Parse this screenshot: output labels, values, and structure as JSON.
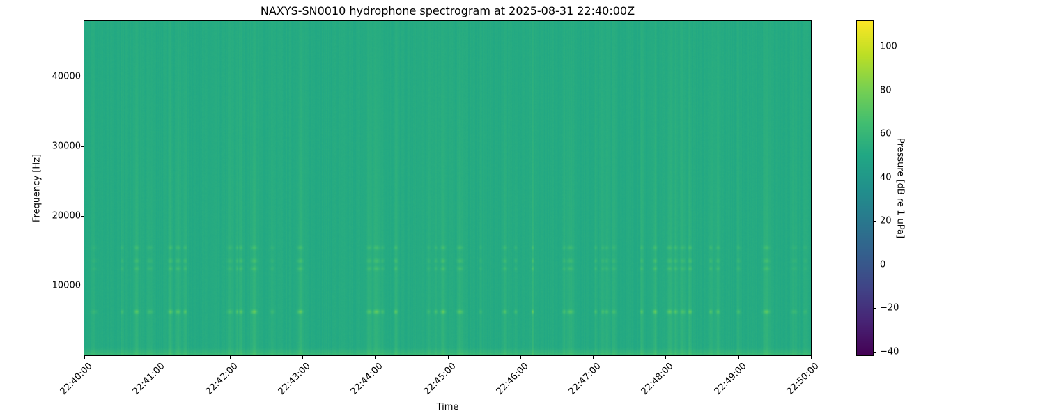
{
  "chart_data": {
    "type": "heatmap",
    "title": "NAXYS-SN0010 hydrophone spectrogram at 2025-08-31 22:40:00Z",
    "xlabel": "Time",
    "ylabel": "Frequency [Hz]",
    "xlim": [
      "22:40:00",
      "22:50:00"
    ],
    "ylim": [
      0,
      48000
    ],
    "x_ticks": [
      "22:40:00",
      "22:41:00",
      "22:42:00",
      "22:43:00",
      "22:44:00",
      "22:45:00",
      "22:46:00",
      "22:47:00",
      "22:48:00",
      "22:49:00",
      "22:50:00"
    ],
    "y_ticks": [
      10000,
      20000,
      30000,
      40000
    ],
    "colormap": "viridis",
    "colorbar": {
      "label": "Pressure [dB re 1 uPa]",
      "range": [
        -41.6,
        111.8
      ],
      "ticks": [
        -40,
        -20,
        0,
        20,
        40,
        60,
        80,
        100
      ]
    },
    "background_level_db": 52,
    "tonal_bands_hz": [
      500,
      6300,
      12500,
      13600,
      15500
    ],
    "transient_events": [
      "22:40:08",
      "22:40:31",
      "22:40:43",
      "22:40:54",
      "22:41:11",
      "22:41:17",
      "22:41:23",
      "22:42:00",
      "22:42:06",
      "22:42:09",
      "22:42:20",
      "22:42:35",
      "22:42:58",
      "22:43:55",
      "22:44:01",
      "22:44:06",
      "22:44:17",
      "22:44:44",
      "22:44:50",
      "22:44:56",
      "22:45:10",
      "22:45:27",
      "22:45:47",
      "22:45:56",
      "22:46:10",
      "22:46:36",
      "22:46:41",
      "22:47:02",
      "22:47:08",
      "22:47:11",
      "22:47:17",
      "22:47:40",
      "22:47:51",
      "22:48:03",
      "22:48:08",
      "22:48:14",
      "22:48:20",
      "22:48:37",
      "22:48:43",
      "22:49:00",
      "22:49:23",
      "22:49:46",
      "22:49:55"
    ]
  }
}
